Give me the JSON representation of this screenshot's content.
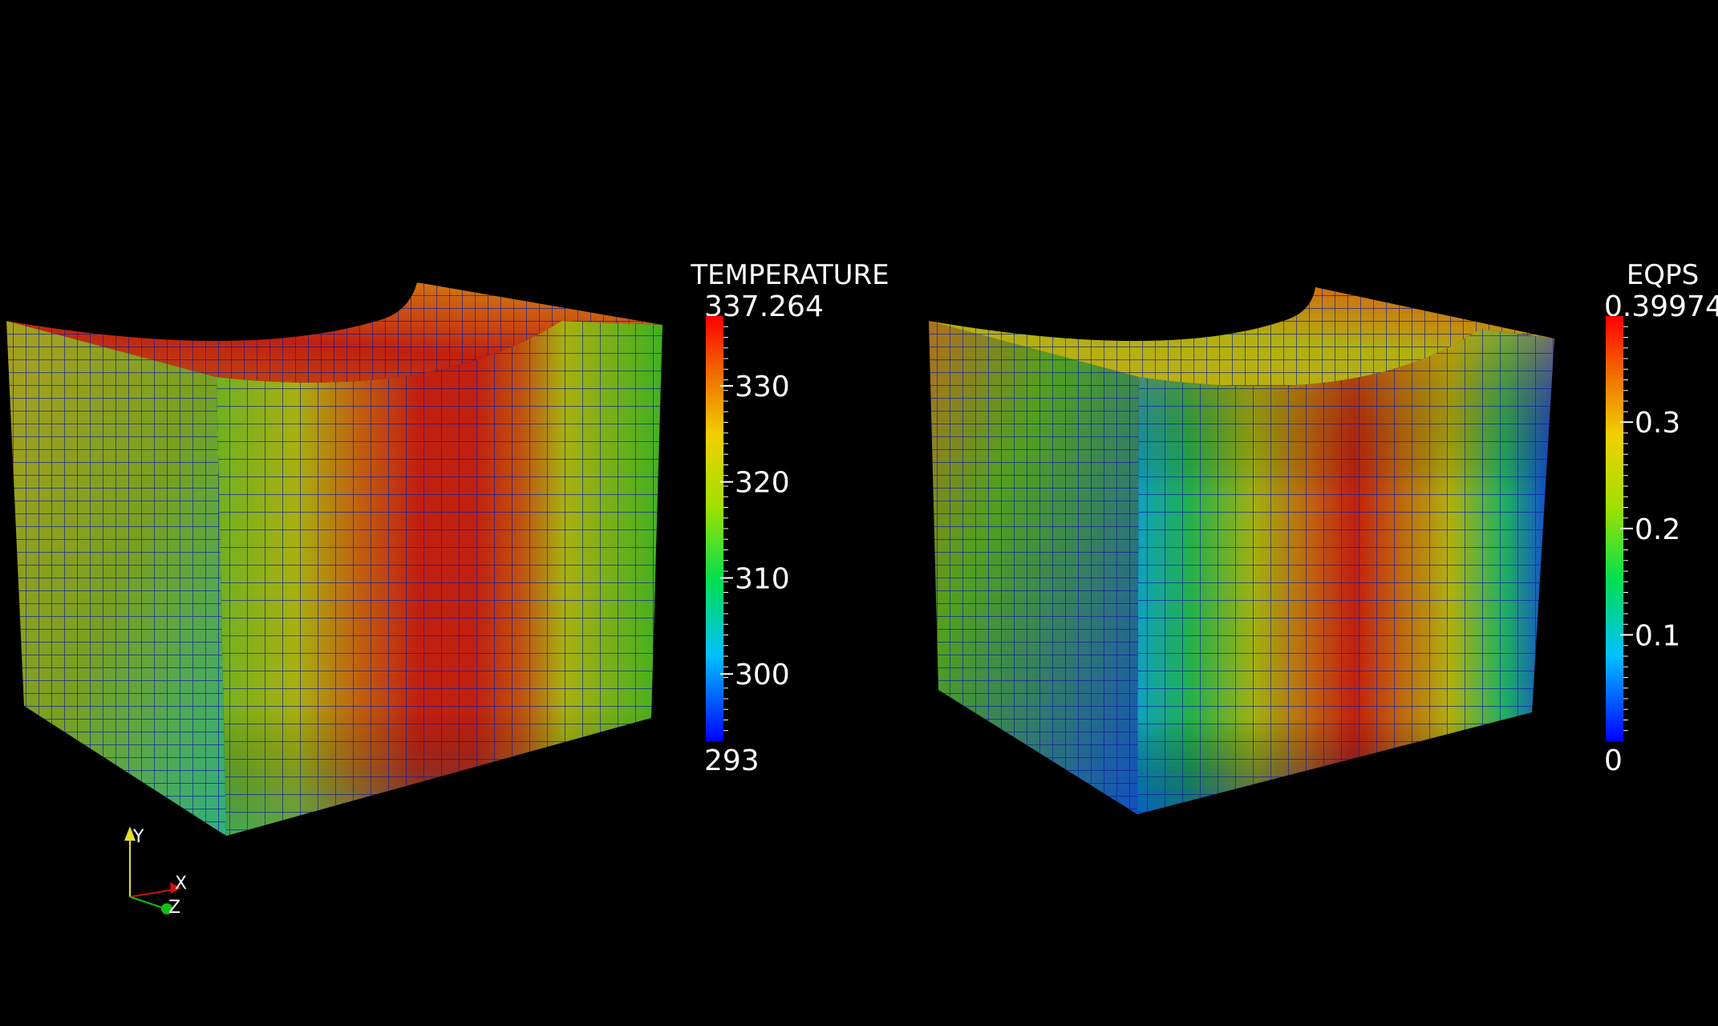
{
  "views": [
    {
      "id": "temperature",
      "colorbar": {
        "title": "TEMPERATURE",
        "max_label": "337.264",
        "min_label": "293",
        "min": 293,
        "max": 337.264,
        "ticks": [
          {
            "value": 330,
            "label": "330"
          },
          {
            "value": 320,
            "label": "320"
          },
          {
            "value": 310,
            "label": "310"
          },
          {
            "value": 300,
            "label": "300"
          }
        ]
      }
    },
    {
      "id": "eqps",
      "colorbar": {
        "title": "EQPS",
        "max_label": "0.39974",
        "min_label": "0",
        "min": 0,
        "max": 0.39974,
        "ticks": [
          {
            "value": 0.3,
            "label": "0.3"
          },
          {
            "value": 0.2,
            "label": "0.2"
          },
          {
            "value": 0.1,
            "label": "0.1"
          }
        ]
      }
    }
  ],
  "axes_triad": {
    "x": "X",
    "y": "Y",
    "z": "Z"
  },
  "colors": {
    "background": "#000000",
    "mesh_lines": "#0a1aa0",
    "axis_x": "#d01010",
    "axis_y": "#e0e030",
    "axis_z": "#10c010"
  }
}
